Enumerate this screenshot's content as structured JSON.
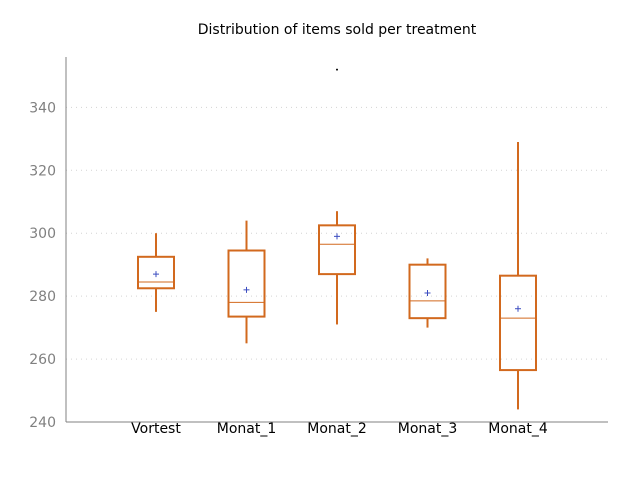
{
  "chart_data": {
    "type": "box",
    "title": "Distribution of items sold per treatment",
    "xlabel": "",
    "ylabel": "",
    "ylim": [
      240,
      356
    ],
    "yticks": [
      240,
      260,
      280,
      300,
      320,
      340
    ],
    "grid": "horizontal dotted",
    "categories": [
      "Vortest",
      "Monat_1",
      "Monat_2",
      "Monat_3",
      "Monat_4"
    ],
    "boxes": [
      {
        "label": "Vortest",
        "whisker_low": 275,
        "q1": 282.5,
        "median": 284.5,
        "q3": 292.5,
        "whisker_high": 300,
        "mean": 287,
        "outliers": []
      },
      {
        "label": "Monat_1",
        "whisker_low": 265,
        "q1": 273.5,
        "median": 278,
        "q3": 294.5,
        "whisker_high": 304,
        "mean": 282,
        "outliers": []
      },
      {
        "label": "Monat_2",
        "whisker_low": 271,
        "q1": 287,
        "median": 296.5,
        "q3": 302.5,
        "whisker_high": 307,
        "mean": 299,
        "outliers": [
          352
        ]
      },
      {
        "label": "Monat_3",
        "whisker_low": 270,
        "q1": 273,
        "median": 278.5,
        "q3": 290,
        "whisker_high": 292,
        "mean": 281,
        "outliers": []
      },
      {
        "label": "Monat_4",
        "whisker_low": 244,
        "q1": 256.5,
        "median": 273,
        "q3": 286.5,
        "whisker_high": 329,
        "mean": 276,
        "outliers": []
      }
    ],
    "colors": {
      "box": "#d2691e",
      "mean_marker": "#3b4cc0",
      "outlier": "#000000",
      "axis": "#808080",
      "grid": "#d3d3d3"
    }
  }
}
